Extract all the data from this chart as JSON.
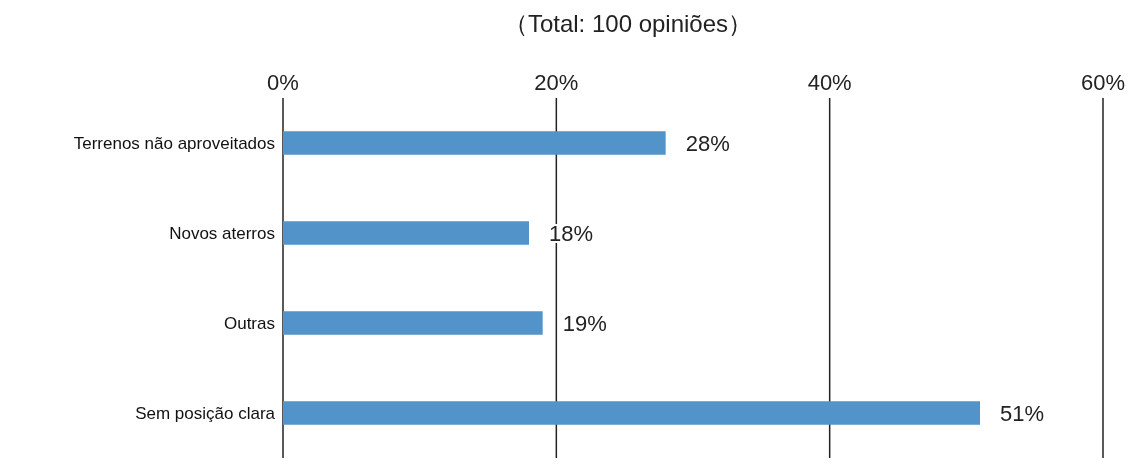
{
  "chart_data": {
    "type": "bar",
    "orientation": "horizontal",
    "title": "（Total: 100 opiniões）",
    "categories": [
      "Terrenos não aproveitados",
      "Novos aterros",
      "Outras",
      "Sem posição clara"
    ],
    "values": [
      28,
      18,
      19,
      51
    ],
    "color": "#5294c9",
    "value_labels": [
      "28%",
      "18%",
      "19%",
      "51%"
    ],
    "xlim": [
      0,
      60
    ],
    "xticks": [
      {
        "value": 0,
        "label": "0%"
      },
      {
        "value": 20,
        "label": "20%"
      },
      {
        "value": 40,
        "label": "40%"
      },
      {
        "value": 60,
        "label": "60%"
      }
    ],
    "grid": "x"
  }
}
